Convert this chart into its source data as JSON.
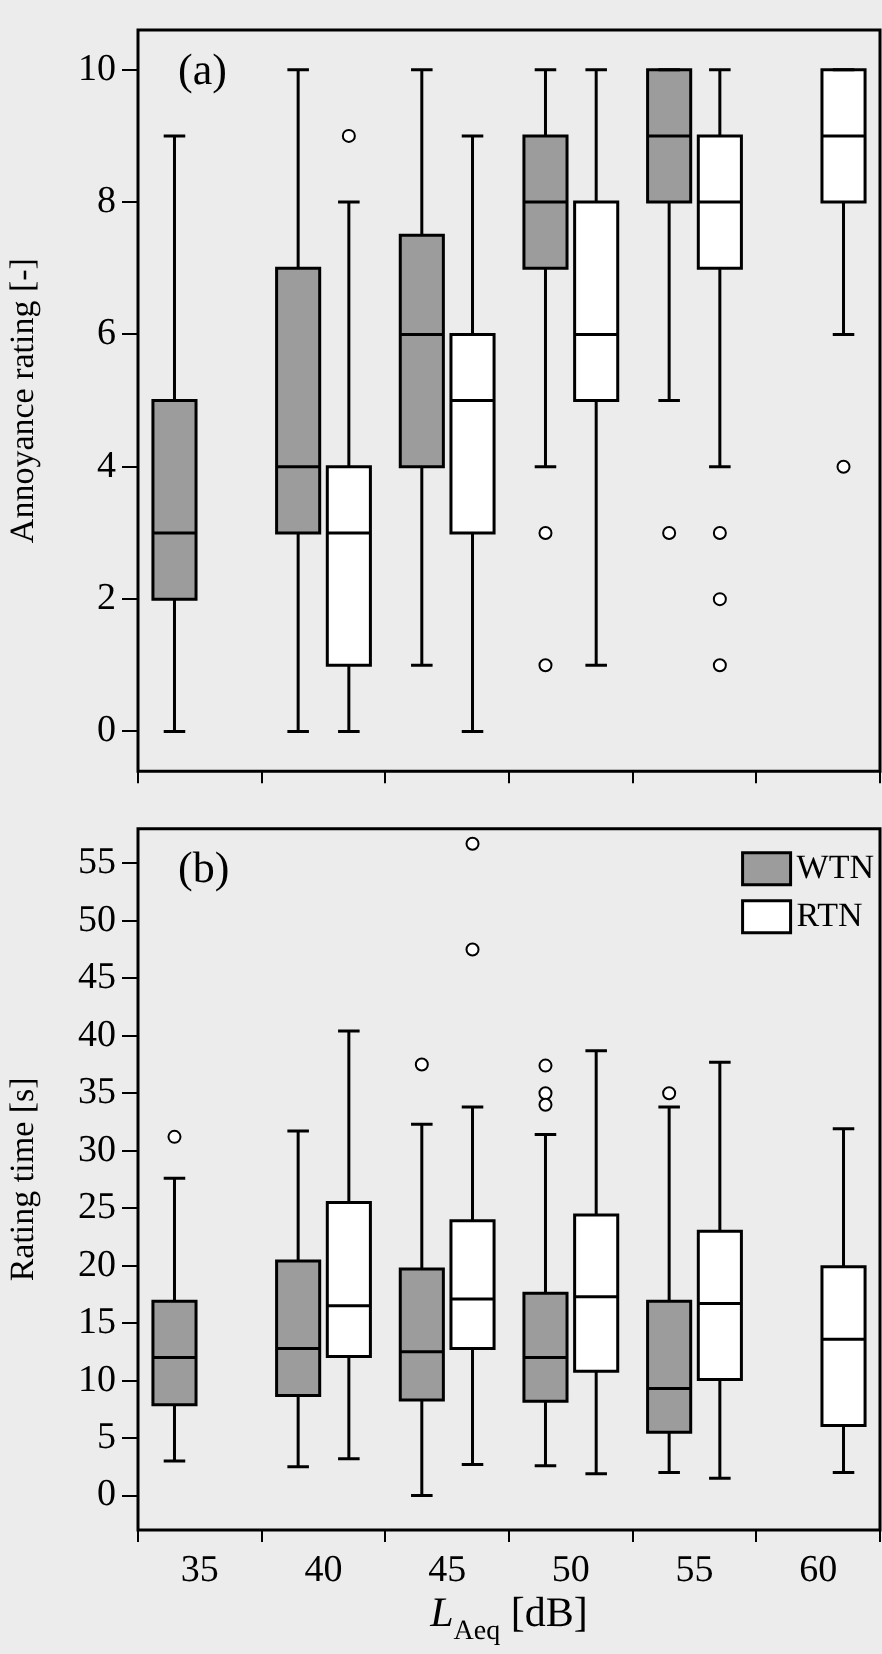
{
  "chart_data": [
    {
      "type": "box",
      "categories": [
        "35",
        "40",
        "45",
        "50",
        "55",
        "60"
      ],
      "ylabel": "Annoyance rating [-]",
      "annotations": [
        "(a)"
      ],
      "ylim": [
        -0.6,
        10.6
      ],
      "yticks": [
        0,
        2,
        4,
        6,
        8,
        10
      ],
      "tick_labels": "y",
      "grid": false,
      "legend": false,
      "series": [
        {
          "color": "#9c9c9c",
          "boxes": [
            {
              "low": 0,
              "q1": 2,
              "median": 3,
              "q3": 5,
              "high": 9
            },
            {
              "low": 0,
              "q1": 3,
              "median": 4,
              "q3": 7,
              "high": 10
            },
            {
              "low": 1,
              "q1": 4,
              "median": 6,
              "q3": 7.5,
              "high": 10
            },
            {
              "low": 4,
              "q1": 7,
              "median": 8,
              "q3": 9,
              "high": 10,
              "outliers": [
                3,
                1
              ]
            },
            {
              "low": 5,
              "q1": 8,
              "median": 9,
              "q3": 10,
              "high": 10,
              "outliers": [
                3
              ]
            },
            null
          ]
        },
        {
          "color": "#ffffff",
          "boxes": [
            null,
            {
              "low": 0,
              "q1": 1,
              "median": 3,
              "q3": 4,
              "high": 8,
              "outliers": [
                9
              ]
            },
            {
              "low": 0,
              "q1": 3,
              "median": 5,
              "q3": 6,
              "high": 9
            },
            {
              "low": 1,
              "q1": 5,
              "median": 6,
              "q3": 8,
              "high": 10
            },
            {
              "low": 4,
              "q1": 7,
              "median": 8,
              "q3": 9,
              "high": 10,
              "outliers": [
                3,
                2,
                1
              ]
            },
            {
              "low": 6,
              "q1": 8,
              "median": 9,
              "q3": 10,
              "high": 10,
              "outliers": [
                4
              ]
            }
          ]
        }
      ]
    },
    {
      "type": "box",
      "categories": [
        "35",
        "40",
        "45",
        "50",
        "55",
        "60"
      ],
      "xlabel": "L$_{Aeq}$ [dB]",
      "ylabel": "Rating time [s]",
      "annotations": [
        "(b)"
      ],
      "ylim": [
        -3,
        58
      ],
      "yticks": [
        0,
        5,
        10,
        15,
        20,
        25,
        30,
        35,
        40,
        45,
        50,
        55
      ],
      "grid": false,
      "legend": "top right",
      "series": [
        {
          "name": "WTN",
          "color": "#9c9c9c",
          "boxes": [
            {
              "low": 3,
              "q1": 7.9,
              "median": 12,
              "q3": 16.9,
              "high": 27.6,
              "outliers": [
                31.2
              ]
            },
            {
              "low": 2.5,
              "q1": 8.7,
              "median": 12.8,
              "q3": 20.4,
              "high": 31.7
            },
            {
              "low": 0,
              "q1": 8.3,
              "median": 12.5,
              "q3": 19.7,
              "high": 32.3,
              "outliers": [
                37.5
              ]
            },
            {
              "low": 2.6,
              "q1": 8.2,
              "median": 12,
              "q3": 17.6,
              "high": 31.4,
              "outliers": [
                37.4,
                35,
                34
              ]
            },
            {
              "low": 2,
              "q1": 5.5,
              "median": 9.3,
              "q3": 16.9,
              "high": 33.8,
              "outliers": [
                35
              ]
            },
            null
          ]
        },
        {
          "name": "RTN",
          "color": "#ffffff",
          "boxes": [
            null,
            {
              "low": 3.2,
              "q1": 12.1,
              "median": 16.5,
              "q3": 25.5,
              "high": 40.4
            },
            {
              "low": 2.7,
              "q1": 12.8,
              "median": 17.1,
              "q3": 23.9,
              "high": 33.8,
              "outliers": [
                56.7,
                47.5
              ]
            },
            {
              "low": 1.9,
              "q1": 10.8,
              "median": 17.3,
              "q3": 24.4,
              "high": 38.7
            },
            {
              "low": 1.5,
              "q1": 10.1,
              "median": 16.7,
              "q3": 23,
              "high": 37.7
            },
            {
              "low": 2,
              "q1": 6.1,
              "median": 13.6,
              "q3": 19.9,
              "high": 31.9
            }
          ]
        }
      ]
    }
  ]
}
